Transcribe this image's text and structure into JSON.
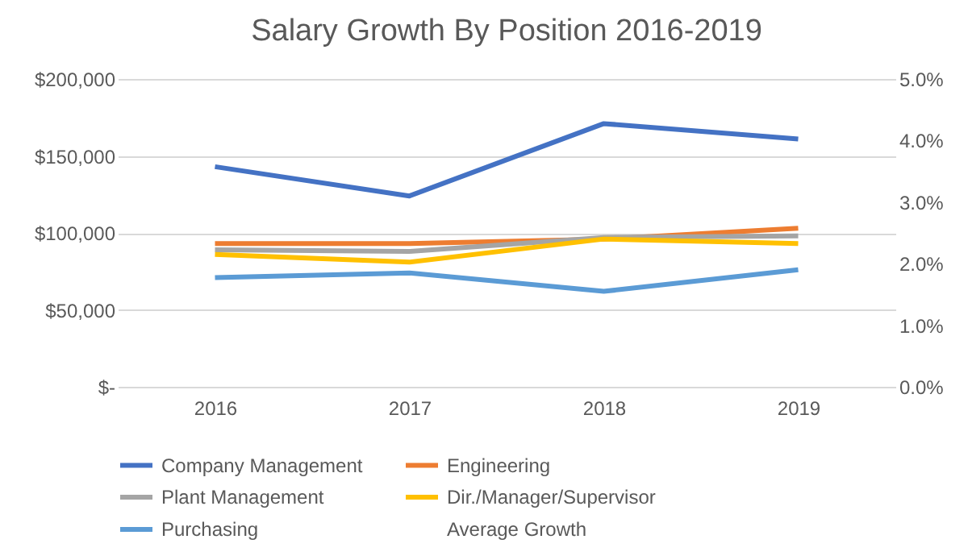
{
  "chart_data": {
    "type": "line",
    "title": "Salary Growth By Position 2016-2019",
    "categories": [
      "2016",
      "2017",
      "2018",
      "2019"
    ],
    "series": [
      {
        "name": "Company Management",
        "color": "#4472c4",
        "values": [
          143000,
          124000,
          171000,
          161000
        ]
      },
      {
        "name": "Engineering",
        "color": "#ed7d31",
        "values": [
          93000,
          93000,
          96000,
          103000
        ]
      },
      {
        "name": "Plant Management",
        "color": "#a5a5a5",
        "values": [
          89000,
          88000,
          97000,
          98000
        ]
      },
      {
        "name": "Dir./Manager/Supervisor",
        "color": "#ffc000",
        "values": [
          86000,
          81000,
          96000,
          93000
        ]
      },
      {
        "name": "Purchasing",
        "color": "#5b9bd5",
        "values": [
          71000,
          74000,
          62000,
          76000
        ]
      },
      {
        "name": "Average Growth",
        "axis": "y2",
        "values": [
          null,
          null,
          null,
          null
        ]
      }
    ],
    "ylim": [
      0,
      200000
    ],
    "yticks": [
      {
        "value": 0,
        "label": "$-"
      },
      {
        "value": 50000,
        "label": "$50,000"
      },
      {
        "value": 100000,
        "label": "$100,000"
      },
      {
        "value": 150000,
        "label": "$150,000"
      },
      {
        "value": 200000,
        "label": "$200,000"
      }
    ],
    "y2lim": [
      0,
      5
    ],
    "y2ticks": [
      {
        "value": 0,
        "label": "0.0%"
      },
      {
        "value": 1,
        "label": "1.0%"
      },
      {
        "value": 2,
        "label": "2.0%"
      },
      {
        "value": 3,
        "label": "3.0%"
      },
      {
        "value": 4,
        "label": "4.0%"
      },
      {
        "value": 5,
        "label": "5.0%"
      }
    ],
    "grid": "y",
    "legend": "bottom",
    "marker": "none",
    "line_style": "solid"
  }
}
